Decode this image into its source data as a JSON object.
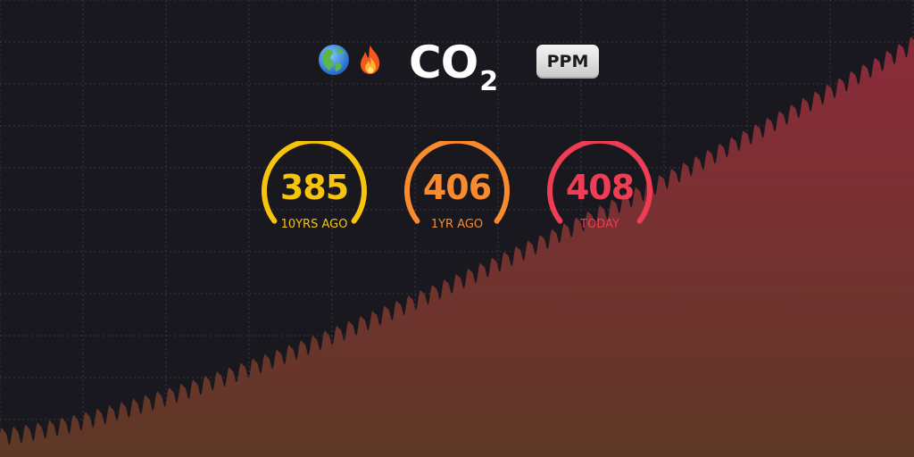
{
  "header": {
    "globe_icon": "earth-globe-americas-icon",
    "fire_icon": "fire-icon",
    "title_main": "CO",
    "title_subscript": "2",
    "unit_badge": "PPM"
  },
  "gauges": [
    {
      "value": "385",
      "label": "10YRS AGO",
      "color": "#f6c40d"
    },
    {
      "value": "406",
      "label": "1YR AGO",
      "color": "#f98a2e"
    },
    {
      "value": "408",
      "label": "TODAY",
      "color": "#ef3d55"
    }
  ],
  "colors": {
    "background": "#19181e",
    "grid": "#3a3940",
    "area_top": "#8b2b3a",
    "area_bottom": "#5e3826"
  }
}
